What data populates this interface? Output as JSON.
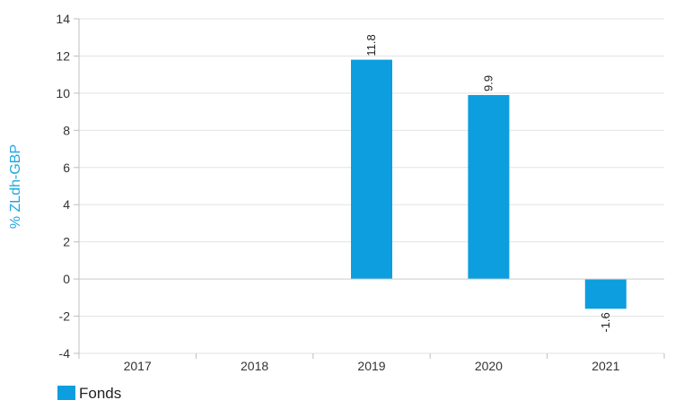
{
  "chart_data": {
    "type": "bar",
    "categories": [
      "2017",
      "2018",
      "2019",
      "2020",
      "2021"
    ],
    "series": [
      {
        "name": "Fonds",
        "values": [
          null,
          null,
          11.8,
          9.9,
          -1.6
        ],
        "data_labels": [
          "",
          "",
          "11.8",
          "9.9",
          "-1.6"
        ],
        "color": "#0c9edf"
      }
    ],
    "title": "",
    "xlabel": "",
    "ylabel": "% ZLdh-GBP",
    "ylim": [
      -4,
      14
    ],
    "yticks": [
      -4,
      -2,
      0,
      2,
      4,
      6,
      8,
      10,
      12,
      14
    ],
    "ytick_labels": [
      "-4",
      "-2",
      "0",
      "2",
      "4",
      "6",
      "8",
      "10",
      "12",
      "14"
    ],
    "grid": true,
    "legend": "bottom-left"
  },
  "legend": {
    "label": "Fonds"
  },
  "colors": {
    "bar": "#0c9edf",
    "ylabel": "#1ea7e1",
    "grid": "#e3e3e3",
    "axis": "#bfbfbf"
  }
}
